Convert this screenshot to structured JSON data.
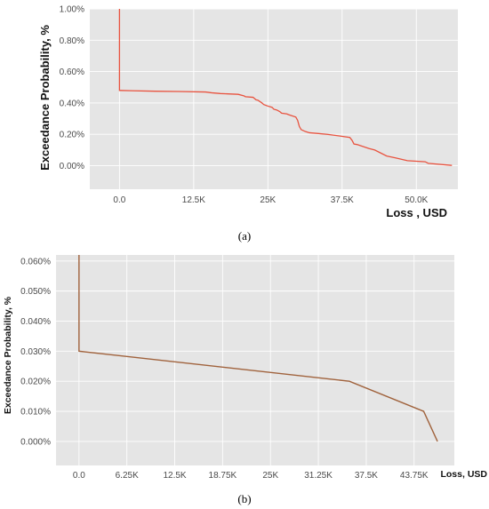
{
  "chart_data": [
    {
      "type": "line",
      "panel_label": "(a)",
      "xlabel": "Loss , USD",
      "ylabel": "Exceedance Probability, %",
      "xlim": [
        -5000,
        57000
      ],
      "ylim": [
        -0.0015,
        0.01
      ],
      "x_ticks": [
        0,
        12500,
        25000,
        37500,
        50000
      ],
      "x_tick_labels": [
        "0.0",
        "12.5K",
        "25K",
        "37.5K",
        "50.0K"
      ],
      "y_ticks": [
        0,
        0.002,
        0.004,
        0.006,
        0.008,
        0.01
      ],
      "y_tick_labels": [
        "0.00%",
        "0.20%",
        "0.40%",
        "0.60%",
        "0.80%",
        "1.00%"
      ],
      "grid": true,
      "color": "#e8533f",
      "series": [
        {
          "x": [
            0,
            0,
            200,
            2000,
            6000,
            10000,
            14500,
            15500,
            17000,
            20000,
            21000,
            21200,
            22500,
            23000,
            23300,
            24000,
            24300,
            25000,
            25700,
            26000,
            26500,
            27000,
            27300,
            28200,
            28500,
            29700,
            30000,
            30300,
            30600,
            31300,
            32000,
            33500,
            35000,
            37000,
            38800,
            39200,
            39500,
            40000,
            42000,
            43000,
            45000,
            46500,
            48500,
            51500,
            52000,
            56000
          ],
          "y": [
            0.01,
            0.0048,
            0.0048,
            0.00478,
            0.00475,
            0.00473,
            0.0047,
            0.00465,
            0.0046,
            0.00455,
            0.00445,
            0.0044,
            0.00436,
            0.0042,
            0.00418,
            0.004,
            0.0039,
            0.0038,
            0.00372,
            0.0036,
            0.00355,
            0.00345,
            0.00335,
            0.0033,
            0.00325,
            0.0031,
            0.0029,
            0.0025,
            0.0023,
            0.00218,
            0.0021,
            0.00205,
            0.002,
            0.0019,
            0.0018,
            0.0016,
            0.00138,
            0.00135,
            0.0011,
            0.001,
            0.00062,
            0.0005,
            0.00032,
            0.00025,
            0.00015,
            2e-05
          ]
        }
      ]
    },
    {
      "type": "line",
      "panel_label": "(b)",
      "xlabel": "Loss, USD",
      "ylabel": "Exceedance Probability, %",
      "xlim": [
        -3000,
        49000
      ],
      "ylim": [
        -8e-05,
        0.00062
      ],
      "x_ticks": [
        0,
        6250,
        12500,
        18750,
        25000,
        31250,
        37500,
        43750
      ],
      "x_tick_labels": [
        "0.0",
        "6.25K",
        "12.5K",
        "18.75K",
        "25K",
        "31.25K",
        "37.5K",
        "43.75K"
      ],
      "y_ticks": [
        0,
        0.0001,
        0.0002,
        0.0003,
        0.0004,
        0.0005,
        0.0006
      ],
      "y_tick_labels": [
        "0.000%",
        "0.010%",
        "0.020%",
        "0.030%",
        "0.040%",
        "0.050%",
        "0.060%"
      ],
      "grid": true,
      "color": "#a0623c",
      "series": [
        {
          "x": [
            0,
            0,
            35300,
            45000,
            46800
          ],
          "y": [
            0.00062,
            0.0003,
            0.0002,
            0.0001,
            0
          ]
        }
      ]
    }
  ]
}
